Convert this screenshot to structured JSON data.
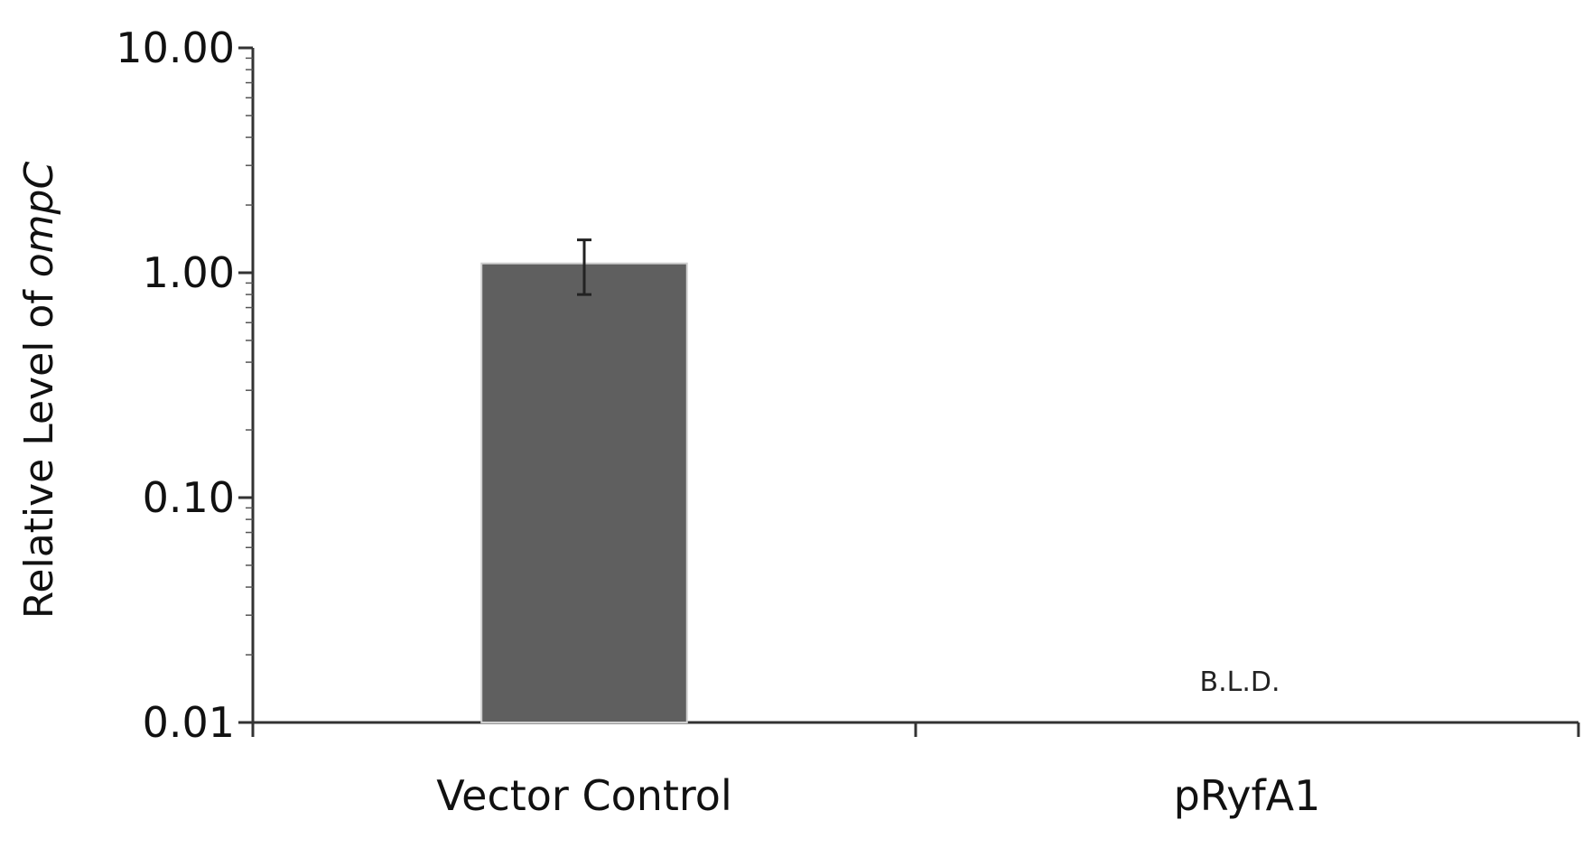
{
  "chart_data": {
    "type": "bar",
    "title": "",
    "xlabel": "",
    "ylabel": "Relative Level of ",
    "ylabel_italic": "ompC",
    "yscale": "log",
    "ylim": [
      0.01,
      10
    ],
    "yticks": [
      "10.00",
      "1.00",
      "0.10",
      "0.01"
    ],
    "ytick_values": [
      10,
      1,
      0.1,
      0.01
    ],
    "categories": [
      "Vector Control",
      "pRyfA1"
    ],
    "values": [
      1.1,
      null
    ],
    "error_low": [
      0.8,
      null
    ],
    "error_high": [
      1.4,
      null
    ],
    "bar_color": "#5f5f5f",
    "annotations": [
      {
        "category": "pRyfA1",
        "text": "B.L.D."
      }
    ],
    "grid": false,
    "legend": "none"
  }
}
